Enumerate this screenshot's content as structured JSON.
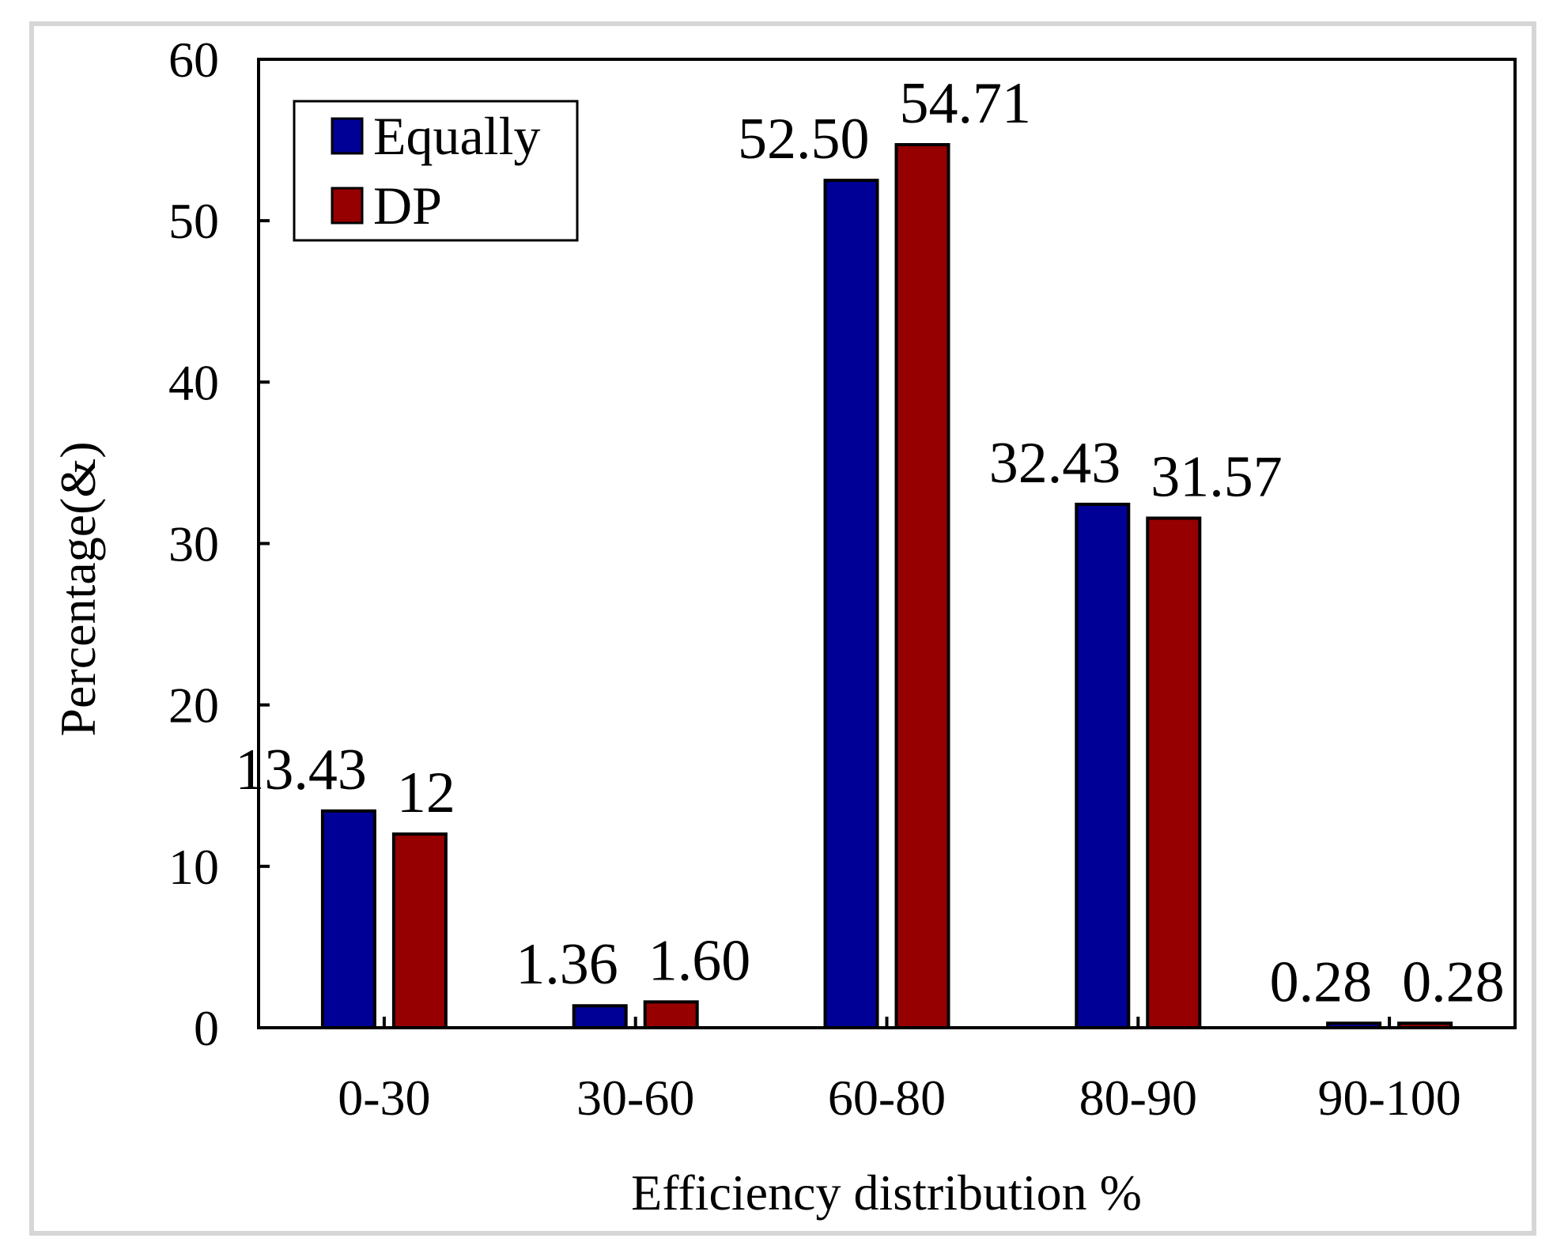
{
  "chart_data": {
    "type": "bar",
    "title": "",
    "xlabel": "Efficiency distribution %",
    "ylabel": "Percentage(&)",
    "ylim": [
      0,
      60
    ],
    "yticks": [
      0,
      10,
      20,
      30,
      40,
      50,
      60
    ],
    "categories": [
      "0-30",
      "30-60",
      "60-80",
      "80-90",
      "90-100"
    ],
    "series": [
      {
        "name": "Equally",
        "color": "#000096",
        "values": [
          13.43,
          1.36,
          52.5,
          32.43,
          0.28
        ],
        "labels": [
          "13.43",
          "1.36",
          "52.50",
          "32.43",
          "0.28"
        ]
      },
      {
        "name": "DP",
        "color": "#960000",
        "values": [
          12,
          1.6,
          54.71,
          31.57,
          0.28
        ],
        "labels": [
          "12",
          "1.60",
          "54.71",
          "31.57",
          "0.28"
        ]
      }
    ],
    "legend_position": "top-left",
    "grid": false
  }
}
